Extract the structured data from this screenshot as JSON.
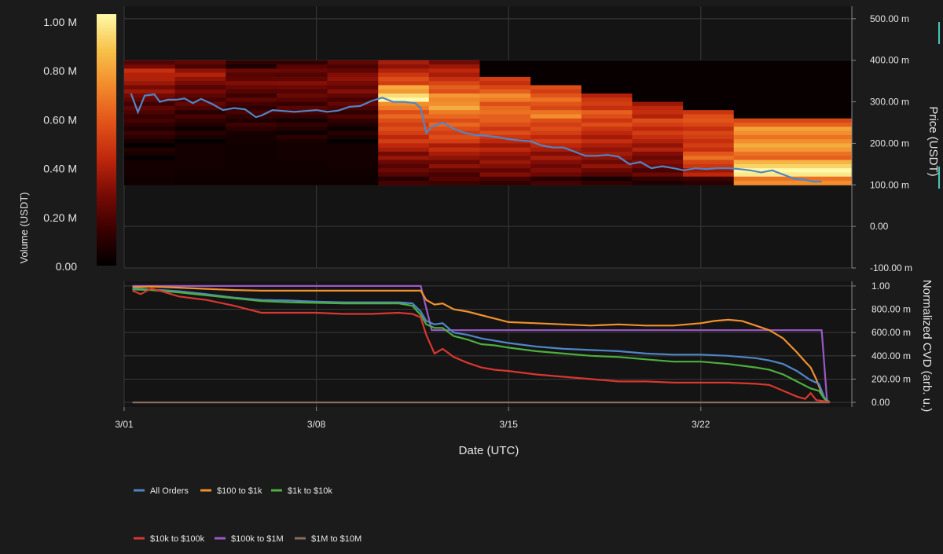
{
  "colors": {
    "background": "#1b1b1b",
    "plot_background": "#141414",
    "grid": "#3a3a3a",
    "price_line": "#4f86c6"
  },
  "chart_data": [
    {
      "type": "heatmap",
      "name": "liquidity-heatmap",
      "colorbar": {
        "label": "Volume (USDT)",
        "ticks": [
          "1.00 M",
          "0.80 M",
          "0.60 M",
          "0.40 M",
          "0.20 M",
          "0.00"
        ],
        "range": [
          0,
          1000000
        ],
        "colormap": [
          "#000000",
          "#3a0000",
          "#7a0b05",
          "#c0280c",
          "#e2541a",
          "#f28a2b",
          "#f7c24a",
          "#fff9a8"
        ]
      },
      "xlabel": "Date (UTC)",
      "x_ticks": [
        "3/01",
        "3/08",
        "3/15",
        "3/22"
      ],
      "x_range_days": [
        0,
        26.5
      ],
      "y_label": "Price (USDT)",
      "y_ticks": [
        "500.00 m",
        "400.00 m",
        "300.00 m",
        "200.00 m",
        "100.00 m",
        "0.00",
        "-100.00 m"
      ],
      "y_range": [
        -0.1,
        0.53
      ],
      "heat_rows": [
        0.38,
        0.36,
        0.34,
        0.32,
        0.3,
        0.28,
        0.26,
        0.24,
        0.22,
        0.2,
        0.18,
        0.16,
        0.14,
        0.12,
        0.1
      ],
      "heat_blocks": [
        {
          "start": 0.0,
          "end": 1.85,
          "levels": [
            0.25,
            0.45,
            0.35,
            0.3,
            0.25,
            0.2,
            0.18,
            0.12,
            0.1,
            0.08,
            0.06,
            0.06,
            0.05,
            0.05,
            0.04
          ]
        },
        {
          "start": 1.85,
          "end": 3.7,
          "levels": [
            0.18,
            0.35,
            0.3,
            0.25,
            0.22,
            0.18,
            0.12,
            0.1,
            0.08,
            0.06,
            0.05,
            0.05,
            0.05,
            0.04,
            0.03
          ]
        },
        {
          "start": 3.7,
          "end": 5.55,
          "levels": [
            0.12,
            0.2,
            0.25,
            0.22,
            0.2,
            0.16,
            0.12,
            0.1,
            0.08,
            0.05,
            0.04,
            0.04,
            0.04,
            0.04,
            0.03
          ]
        },
        {
          "start": 5.55,
          "end": 7.4,
          "levels": [
            0.15,
            0.22,
            0.28,
            0.25,
            0.2,
            0.16,
            0.14,
            0.1,
            0.08,
            0.06,
            0.05,
            0.05,
            0.04,
            0.04,
            0.03
          ]
        },
        {
          "start": 7.4,
          "end": 9.25,
          "levels": [
            0.18,
            0.25,
            0.3,
            0.28,
            0.22,
            0.18,
            0.14,
            0.1,
            0.08,
            0.06,
            0.05,
            0.05,
            0.05,
            0.04,
            0.03
          ]
        },
        {
          "start": 9.25,
          "end": 11.1,
          "levels": [
            0.35,
            0.45,
            0.55,
            0.75,
            0.95,
            0.7,
            0.6,
            0.55,
            0.5,
            0.45,
            0.4,
            0.32,
            0.25,
            0.2,
            0.12
          ]
        },
        {
          "start": 11.1,
          "end": 12.95,
          "levels": [
            0.3,
            0.4,
            0.5,
            0.6,
            0.7,
            0.75,
            0.65,
            0.6,
            0.55,
            0.5,
            0.4,
            0.35,
            0.3,
            0.22,
            0.15
          ]
        },
        {
          "start": 12.95,
          "end": 14.8,
          "levels": [
            0.02,
            0.02,
            0.45,
            0.55,
            0.7,
            0.6,
            0.65,
            0.55,
            0.5,
            0.45,
            0.4,
            0.35,
            0.3,
            0.25,
            0.15
          ]
        },
        {
          "start": 14.8,
          "end": 16.65,
          "levels": [
            0.02,
            0.02,
            0.02,
            0.5,
            0.6,
            0.55,
            0.7,
            0.55,
            0.5,
            0.45,
            0.4,
            0.35,
            0.3,
            0.25,
            0.12
          ]
        },
        {
          "start": 16.65,
          "end": 18.5,
          "levels": [
            0.02,
            0.02,
            0.02,
            0.02,
            0.45,
            0.5,
            0.55,
            0.5,
            0.45,
            0.42,
            0.38,
            0.32,
            0.28,
            0.22,
            0.1
          ]
        },
        {
          "start": 18.5,
          "end": 20.35,
          "levels": [
            0.02,
            0.02,
            0.02,
            0.02,
            0.02,
            0.4,
            0.45,
            0.5,
            0.45,
            0.42,
            0.38,
            0.3,
            0.25,
            0.2,
            0.1
          ]
        },
        {
          "start": 20.35,
          "end": 22.2,
          "levels": [
            0.02,
            0.02,
            0.02,
            0.02,
            0.02,
            0.02,
            0.5,
            0.55,
            0.5,
            0.5,
            0.45,
            0.6,
            0.5,
            0.4,
            0.15
          ]
        },
        {
          "start": 22.2,
          "end": 26.5,
          "levels": [
            0.02,
            0.02,
            0.02,
            0.02,
            0.02,
            0.02,
            0.02,
            0.55,
            0.75,
            0.7,
            0.8,
            0.6,
            0.85,
            0.98,
            0.7
          ]
        }
      ],
      "price_series": {
        "name": "Price",
        "x": [
          0.25,
          0.5,
          0.75,
          1.1,
          1.3,
          1.6,
          1.9,
          2.2,
          2.5,
          2.8,
          3.2,
          3.6,
          4.0,
          4.4,
          4.8,
          5.0,
          5.4,
          5.8,
          6.2,
          6.6,
          7.0,
          7.4,
          7.8,
          8.2,
          8.6,
          9.0,
          9.4,
          9.8,
          10.2,
          10.6,
          10.8,
          11.0,
          11.2,
          11.6,
          12.0,
          12.4,
          12.8,
          13.2,
          13.6,
          14.0,
          14.4,
          14.8,
          15.2,
          15.6,
          16.0,
          16.4,
          16.8,
          17.2,
          17.6,
          18.0,
          18.4,
          18.8,
          19.2,
          19.6,
          20.0,
          20.4,
          20.8,
          21.2,
          21.6,
          22.0,
          22.4,
          22.8,
          23.2,
          23.6,
          24.0,
          24.4,
          24.8,
          25.1,
          25.4
        ],
        "y": [
          0.32,
          0.275,
          0.315,
          0.318,
          0.3,
          0.305,
          0.305,
          0.308,
          0.297,
          0.307,
          0.295,
          0.28,
          0.285,
          0.282,
          0.263,
          0.267,
          0.28,
          0.278,
          0.276,
          0.278,
          0.28,
          0.276,
          0.279,
          0.288,
          0.29,
          0.302,
          0.31,
          0.3,
          0.3,
          0.297,
          0.285,
          0.225,
          0.24,
          0.25,
          0.235,
          0.225,
          0.22,
          0.218,
          0.215,
          0.21,
          0.207,
          0.205,
          0.195,
          0.19,
          0.19,
          0.18,
          0.17,
          0.17,
          0.172,
          0.168,
          0.15,
          0.155,
          0.14,
          0.145,
          0.14,
          0.135,
          0.14,
          0.138,
          0.14,
          0.14,
          0.138,
          0.135,
          0.13,
          0.135,
          0.125,
          0.115,
          0.112,
          0.108,
          0.108
        ]
      }
    },
    {
      "type": "line",
      "name": "normalized-cvd",
      "xlabel": "Date (UTC)",
      "x_ticks": [
        "3/01",
        "3/08",
        "3/15",
        "3/22"
      ],
      "x_range_days": [
        0,
        26.5
      ],
      "ylabel": "Normalized CVD (arb. u.)",
      "y_ticks": [
        "1.00",
        "800.00 m",
        "600.00 m",
        "400.00 m",
        "200.00 m",
        "0.00"
      ],
      "y_range": [
        -0.04,
        1.04
      ],
      "legend_position": "bottom-left",
      "series": [
        {
          "name": "All Orders",
          "color": "#4f86c6",
          "x": [
            0.3,
            1,
            2,
            3,
            4,
            5,
            6,
            7,
            8,
            9,
            10,
            10.5,
            10.8,
            11,
            11.3,
            11.6,
            12,
            12.5,
            13,
            13.5,
            14,
            15,
            16,
            17,
            18,
            19,
            20,
            21,
            22,
            23,
            23.5,
            24,
            24.5,
            25,
            25.3,
            25.5,
            25.7
          ],
          "y": [
            0.98,
            0.97,
            0.955,
            0.93,
            0.9,
            0.88,
            0.875,
            0.865,
            0.86,
            0.86,
            0.86,
            0.85,
            0.78,
            0.7,
            0.67,
            0.68,
            0.6,
            0.58,
            0.55,
            0.53,
            0.51,
            0.48,
            0.46,
            0.45,
            0.44,
            0.42,
            0.41,
            0.41,
            0.4,
            0.38,
            0.36,
            0.33,
            0.27,
            0.19,
            0.16,
            0.04,
            0.0
          ]
        },
        {
          "name": "$100 to $1k",
          "color": "#f0902e",
          "x": [
            0.3,
            1,
            2,
            3,
            4,
            5,
            6,
            7,
            8,
            9,
            10,
            10.5,
            10.8,
            11,
            11.3,
            11.6,
            12,
            12.5,
            13,
            13.5,
            14,
            15,
            16,
            17,
            18,
            19,
            20,
            21,
            21.5,
            22,
            22.5,
            23,
            23.5,
            24,
            24.5,
            24.8,
            25,
            25.2,
            25.4,
            25.6
          ],
          "y": [
            0.99,
            0.995,
            0.985,
            0.975,
            0.965,
            0.96,
            0.96,
            0.96,
            0.96,
            0.96,
            0.96,
            0.96,
            0.96,
            0.88,
            0.84,
            0.85,
            0.8,
            0.78,
            0.75,
            0.72,
            0.69,
            0.68,
            0.67,
            0.66,
            0.67,
            0.66,
            0.66,
            0.68,
            0.7,
            0.71,
            0.7,
            0.66,
            0.62,
            0.55,
            0.43,
            0.35,
            0.3,
            0.2,
            0.08,
            0.0
          ]
        },
        {
          "name": "$1k to $10k",
          "color": "#4caf3e",
          "x": [
            0.3,
            1,
            2,
            3,
            4,
            5,
            6,
            7,
            8,
            9,
            10,
            10.5,
            10.8,
            11,
            11.3,
            11.6,
            12,
            12.5,
            13,
            13.5,
            14,
            15,
            16,
            17,
            18,
            19,
            20,
            21,
            22,
            23,
            23.5,
            24,
            24.5,
            25,
            25.3,
            25.5,
            25.7
          ],
          "y": [
            0.97,
            0.965,
            0.945,
            0.92,
            0.895,
            0.87,
            0.86,
            0.855,
            0.85,
            0.85,
            0.85,
            0.83,
            0.75,
            0.67,
            0.64,
            0.64,
            0.57,
            0.54,
            0.5,
            0.49,
            0.47,
            0.44,
            0.42,
            0.4,
            0.39,
            0.37,
            0.35,
            0.35,
            0.33,
            0.3,
            0.28,
            0.24,
            0.18,
            0.12,
            0.1,
            0.03,
            0.0
          ]
        },
        {
          "name": "$10k to $100k",
          "color": "#d9372f",
          "x": [
            0.3,
            0.6,
            1,
            2,
            3,
            4,
            5,
            6,
            7,
            8,
            9,
            10,
            10.5,
            10.8,
            11,
            11.3,
            11.6,
            12,
            12.5,
            13,
            13.5,
            14,
            15,
            16,
            17,
            18,
            19,
            20,
            21,
            22,
            23,
            23.5,
            24,
            24.5,
            24.8,
            25,
            25.2,
            25.5,
            25.7
          ],
          "y": [
            0.96,
            0.93,
            0.98,
            0.91,
            0.88,
            0.83,
            0.77,
            0.77,
            0.77,
            0.76,
            0.76,
            0.77,
            0.76,
            0.73,
            0.58,
            0.42,
            0.46,
            0.39,
            0.34,
            0.3,
            0.28,
            0.27,
            0.24,
            0.22,
            0.2,
            0.18,
            0.18,
            0.17,
            0.17,
            0.17,
            0.16,
            0.15,
            0.1,
            0.05,
            0.03,
            0.08,
            0.02,
            0.01,
            0.0
          ]
        },
        {
          "name": "$100k to $1M",
          "color": "#9b59c6",
          "x": [
            0.3,
            5,
            10.8,
            11.2,
            15,
            20,
            23.8,
            24.5,
            25.4,
            25.6
          ],
          "y": [
            1.0,
            1.0,
            1.0,
            0.62,
            0.62,
            0.62,
            0.62,
            0.62,
            0.62,
            0.0
          ]
        },
        {
          "name": "$1M to $10M",
          "color": "#8a6c5e",
          "x": [
            0.3,
            25.7
          ],
          "y": [
            0.0,
            0.0
          ]
        }
      ]
    }
  ]
}
